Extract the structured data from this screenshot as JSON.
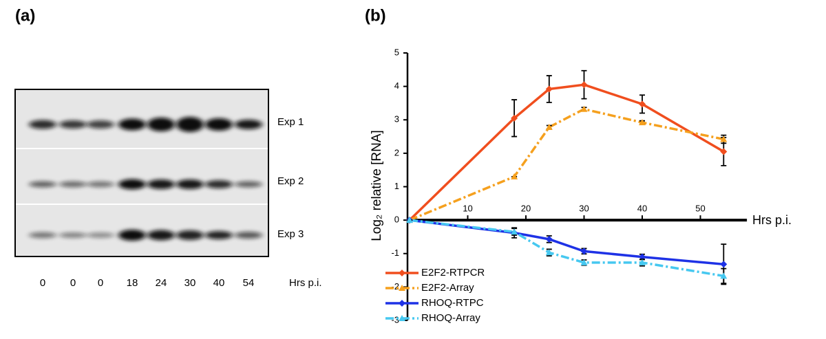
{
  "gel": {
    "panel_label": "(a)",
    "rows": [
      "Exp 1",
      "Exp 2",
      "Exp 3"
    ],
    "lanes": [
      "0",
      "0",
      "0",
      "18",
      "24",
      "30",
      "40",
      "54"
    ],
    "x_label": "Hrs p.i."
  },
  "chart_data": {
    "type": "line",
    "panel_label": "(b)",
    "x_label": "Hrs p.i.",
    "y_label": "Log₂ relative [RNA]",
    "x": [
      0,
      18,
      24,
      30,
      40,
      54
    ],
    "xlim": [
      0,
      58
    ],
    "xticks": [
      10,
      20,
      30,
      40,
      50
    ],
    "ylim": [
      -3,
      5
    ],
    "yticks": [
      -3,
      -2,
      -1,
      0,
      1,
      2,
      3,
      4,
      5
    ],
    "legend": "lower left",
    "series": [
      {
        "name": "E2F2-RTPCR",
        "color": "#f04e1e",
        "line_style": "solid",
        "marker": "diamond",
        "values": [
          0,
          3.05,
          3.92,
          4.05,
          3.47,
          2.05
        ],
        "errors": [
          0,
          0.55,
          0.4,
          0.42,
          0.27,
          0.42
        ]
      },
      {
        "name": "E2F2-Array",
        "color": "#f5a01e",
        "line_style": "dash-dot",
        "marker": "triangle",
        "values": [
          0,
          1.3,
          2.78,
          3.32,
          2.92,
          2.42
        ],
        "errors": [
          0,
          0,
          0.05,
          0.05,
          0.05,
          0.12
        ]
      },
      {
        "name": "RHOQ-RTPC",
        "color": "#1e32e6",
        "line_style": "solid",
        "marker": "diamond",
        "values": [
          0,
          -0.38,
          -0.57,
          -0.93,
          -1.1,
          -1.32
        ],
        "errors": [
          0,
          0.15,
          0.1,
          0.08,
          0.08,
          0.6
        ]
      },
      {
        "name": "RHOQ-Array",
        "color": "#46c8f0",
        "line_style": "dash-dot",
        "marker": "triangle",
        "values": [
          0,
          -0.35,
          -0.97,
          -1.27,
          -1.27,
          -1.67
        ],
        "errors": [
          0,
          0.1,
          0.1,
          0.08,
          0.1,
          0.22
        ]
      }
    ]
  }
}
